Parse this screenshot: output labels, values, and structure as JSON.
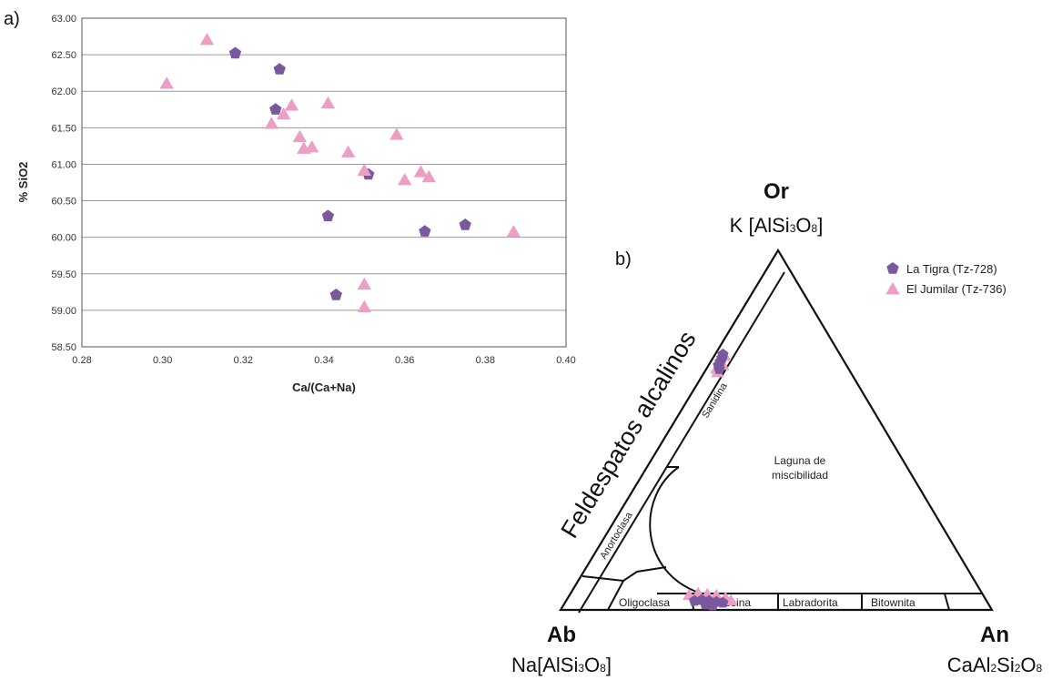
{
  "panel_a_label": "a)",
  "panel_b_label": "b)",
  "colors": {
    "la_tigra": "#7a58a0",
    "el_jumilar": "#ec9ec4",
    "gridline": "#9a9a9a",
    "frame": "#555555"
  },
  "chart_data": [
    {
      "type": "scatter",
      "title": "",
      "xlabel": "Ca/(Ca+Na)",
      "ylabel": "% SiO2",
      "xlim": [
        0.28,
        0.4
      ],
      "ylim": [
        58.5,
        63.0
      ],
      "x_ticks": [
        "0.28",
        "0.30",
        "0.32",
        "0.34",
        "0.36",
        "0.38",
        "0.40"
      ],
      "y_ticks": [
        "58.50",
        "59.00",
        "59.50",
        "60.00",
        "60.50",
        "61.00",
        "61.50",
        "62.00",
        "62.50",
        "63.00"
      ],
      "grid": "horizontal",
      "series": [
        {
          "key": "la_tigra",
          "marker": "pentagon",
          "points": [
            [
              0.318,
              62.52
            ],
            [
              0.329,
              62.3
            ],
            [
              0.328,
              61.75
            ],
            [
              0.351,
              60.86
            ],
            [
              0.341,
              60.29
            ],
            [
              0.365,
              60.08
            ],
            [
              0.375,
              60.17
            ],
            [
              0.343,
              59.21
            ]
          ]
        },
        {
          "key": "el_jumilar",
          "marker": "triangle",
          "points": [
            [
              0.311,
              62.7
            ],
            [
              0.301,
              62.1
            ],
            [
              0.332,
              61.8
            ],
            [
              0.341,
              61.83
            ],
            [
              0.33,
              61.68
            ],
            [
              0.327,
              61.55
            ],
            [
              0.334,
              61.37
            ],
            [
              0.335,
              61.21
            ],
            [
              0.337,
              61.23
            ],
            [
              0.346,
              61.16
            ],
            [
              0.358,
              61.4
            ],
            [
              0.35,
              60.91
            ],
            [
              0.364,
              60.89
            ],
            [
              0.366,
              60.82
            ],
            [
              0.36,
              60.78
            ],
            [
              0.387,
              60.07
            ],
            [
              0.35,
              59.35
            ],
            [
              0.35,
              59.04
            ]
          ]
        }
      ]
    },
    {
      "type": "ternary",
      "vertices": {
        "or": {
          "name": "Or",
          "formula_pre": "K [AlSi",
          "sub1": "3",
          "mid": "O",
          "sub2": "8",
          "post": "]"
        },
        "ab": {
          "name": "Ab",
          "formula_pre": "Na[AlSi",
          "sub1": "3",
          "mid": "O",
          "sub2": "8",
          "post": "]"
        },
        "an": {
          "name": "An",
          "formula_pre": "CaAl",
          "sub1": "2",
          "mid": "Si",
          "sub2": "2",
          "post": "O",
          "sub3": "8"
        }
      },
      "side_label": "Feldespatos alcalinos",
      "fields": {
        "sanidina": "Sanidina",
        "anortoclasa": "Anortoclasa",
        "oligoclasa": "Oligoclasa",
        "andesina": "Andesina",
        "labradorita": "Labradorita",
        "bitownita": "Bitownita",
        "gap_line1": "Laguna de",
        "gap_line2": "miscibilidad"
      },
      "legend": [
        {
          "key": "la_tigra",
          "label": "La Tigra (Tz-728)",
          "marker": "pentagon"
        },
        {
          "key": "el_jumilar",
          "label": "El Jumilar (Tz-736)",
          "marker": "triangle"
        }
      ],
      "clusters": {
        "sanidine": {
          "an": 0.02,
          "or": 0.69
        },
        "andesine": {
          "an": 0.33,
          "or": 0.02
        }
      }
    }
  ]
}
